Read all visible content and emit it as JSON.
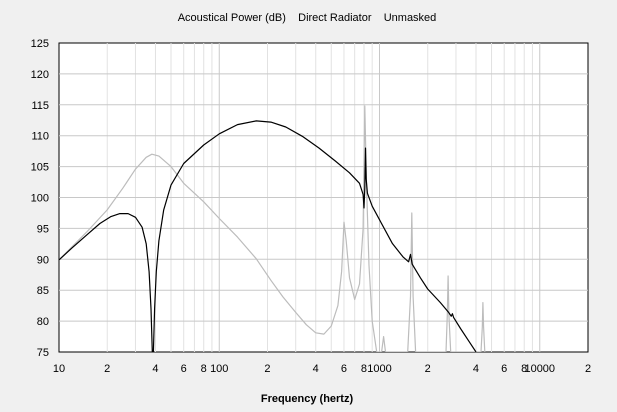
{
  "chart_data": {
    "type": "line",
    "title": "Acoustical Power (dB)    Direct Radiator    Unmasked",
    "xlabel": "Frequency (hertz)",
    "ylabel": "",
    "x_scale": "log",
    "xlim": [
      10,
      20000
    ],
    "ylim": [
      75,
      125
    ],
    "grid": true,
    "y_ticks": [
      75,
      80,
      85,
      90,
      95,
      100,
      105,
      110,
      115,
      120,
      125
    ],
    "x_ticks": [
      {
        "value": 10,
        "label": "10"
      },
      {
        "value": 20,
        "label": "2"
      },
      {
        "value": 40,
        "label": "4"
      },
      {
        "value": 60,
        "label": "6"
      },
      {
        "value": 80,
        "label": "8"
      },
      {
        "value": 100,
        "label": "100"
      },
      {
        "value": 200,
        "label": "2"
      },
      {
        "value": 400,
        "label": "4"
      },
      {
        "value": 600,
        "label": "6"
      },
      {
        "value": 800,
        "label": "8"
      },
      {
        "value": 1000,
        "label": "1000"
      },
      {
        "value": 2000,
        "label": "2"
      },
      {
        "value": 4000,
        "label": "4"
      },
      {
        "value": 6000,
        "label": "6"
      },
      {
        "value": 8000,
        "label": "8"
      },
      {
        "value": 10000,
        "label": "10000"
      },
      {
        "value": 20000,
        "label": "2"
      }
    ],
    "series": [
      {
        "color": "#000000",
        "points": [
          [
            10,
            89.9
          ],
          [
            12,
            91.8
          ],
          [
            15,
            94.0
          ],
          [
            18,
            95.8
          ],
          [
            21,
            96.9
          ],
          [
            24,
            97.4
          ],
          [
            27,
            97.4
          ],
          [
            30,
            96.8
          ],
          [
            33,
            95.2
          ],
          [
            35,
            92.5
          ],
          [
            36.5,
            88.0
          ],
          [
            37.5,
            82.0
          ],
          [
            38.2,
            75.0
          ],
          [
            38.8,
            75.0
          ],
          [
            39.5,
            82.0
          ],
          [
            40.5,
            88.0
          ],
          [
            42,
            93.0
          ],
          [
            45,
            98.0
          ],
          [
            50,
            102.0
          ],
          [
            60,
            105.5
          ],
          [
            80,
            108.5
          ],
          [
            100,
            110.3
          ],
          [
            130,
            111.8
          ],
          [
            170,
            112.4
          ],
          [
            210,
            112.2
          ],
          [
            260,
            111.4
          ],
          [
            330,
            109.9
          ],
          [
            420,
            108.0
          ],
          [
            530,
            105.9
          ],
          [
            650,
            104.0
          ],
          [
            750,
            102.3
          ],
          [
            790,
            100.5
          ],
          [
            800,
            98.3
          ],
          [
            810,
            101.5
          ],
          [
            818,
            108.0
          ],
          [
            826,
            103.0
          ],
          [
            840,
            100.7
          ],
          [
            900,
            98.6
          ],
          [
            1000,
            96.4
          ],
          [
            1200,
            92.6
          ],
          [
            1400,
            90.4
          ],
          [
            1520,
            89.6
          ],
          [
            1560,
            90.8
          ],
          [
            1600,
            89.2
          ],
          [
            1800,
            87.0
          ],
          [
            2000,
            85.2
          ],
          [
            2400,
            83.0
          ],
          [
            2700,
            81.4
          ],
          [
            2800,
            80.8
          ],
          [
            2850,
            81.2
          ],
          [
            2900,
            80.6
          ],
          [
            3200,
            78.8
          ],
          [
            3600,
            76.8
          ],
          [
            4000,
            75.0
          ]
        ]
      },
      {
        "color": "#bcbcbc",
        "points": [
          [
            10,
            89.9
          ],
          [
            15,
            94.5
          ],
          [
            20,
            98.0
          ],
          [
            25,
            101.5
          ],
          [
            30,
            104.6
          ],
          [
            35,
            106.5
          ],
          [
            38,
            107.0
          ],
          [
            42,
            106.7
          ],
          [
            50,
            105.0
          ],
          [
            60,
            102.3
          ],
          [
            80,
            99.3
          ],
          [
            100,
            96.6
          ],
          [
            130,
            93.6
          ],
          [
            170,
            90.1
          ],
          [
            210,
            86.6
          ],
          [
            250,
            83.9
          ],
          [
            300,
            81.4
          ],
          [
            350,
            79.4
          ],
          [
            400,
            78.1
          ],
          [
            450,
            77.9
          ],
          [
            500,
            79.2
          ],
          [
            550,
            82.5
          ],
          [
            580,
            88.0
          ],
          [
            600,
            96.0
          ],
          [
            620,
            93.0
          ],
          [
            650,
            87.0
          ],
          [
            700,
            83.5
          ],
          [
            750,
            86.0
          ],
          [
            790,
            95.0
          ],
          [
            810,
            114.8
          ],
          [
            830,
            102.0
          ],
          [
            860,
            89.0
          ],
          [
            900,
            80.0
          ],
          [
            960,
            75.0
          ],
          [
            1030,
            75.0
          ],
          [
            1060,
            77.5
          ],
          [
            1090,
            75.0
          ],
          [
            1500,
            75.0
          ],
          [
            1560,
            84.0
          ],
          [
            1590,
            97.5
          ],
          [
            1620,
            84.0
          ],
          [
            1680,
            75.0
          ],
          [
            2600,
            75.0
          ],
          [
            2650,
            81.0
          ],
          [
            2680,
            87.3
          ],
          [
            2710,
            81.0
          ],
          [
            2780,
            75.0
          ],
          [
            4300,
            75.0
          ],
          [
            4380,
            79.0
          ],
          [
            4420,
            83.0
          ],
          [
            4460,
            79.0
          ],
          [
            4540,
            75.0
          ]
        ]
      }
    ]
  }
}
